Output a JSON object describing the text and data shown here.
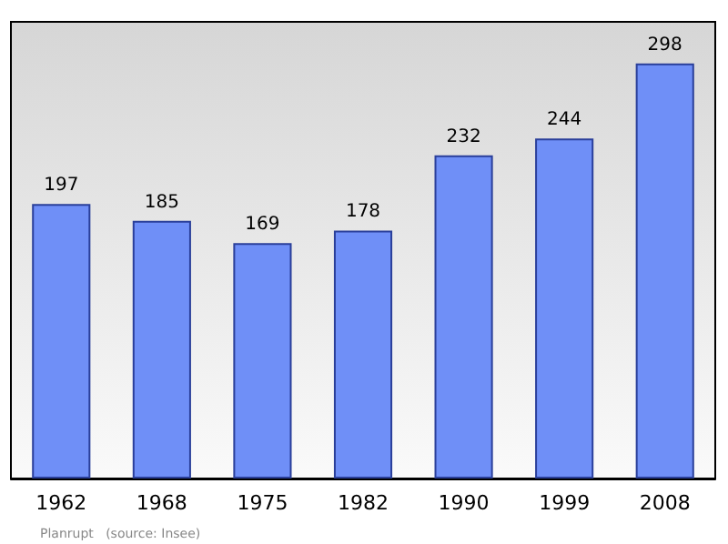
{
  "chart_data": {
    "type": "bar",
    "categories": [
      "1962",
      "1968",
      "1975",
      "1982",
      "1990",
      "1999",
      "2008"
    ],
    "values": [
      197,
      185,
      169,
      178,
      232,
      244,
      298
    ],
    "color": "#6f8ff7",
    "data_labels": true,
    "grid": false,
    "annotations": [
      "Planrupt   (source: Insee)"
    ]
  }
}
